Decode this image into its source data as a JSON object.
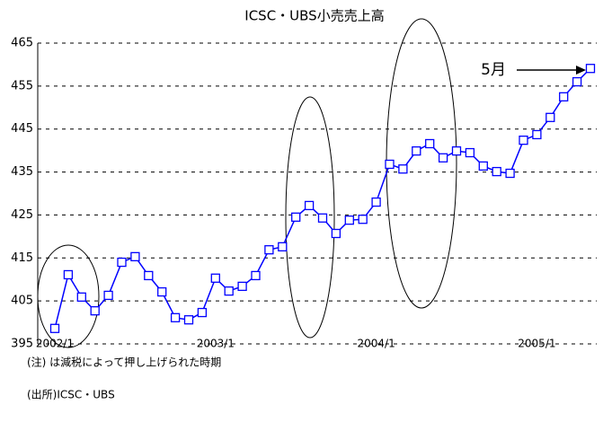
{
  "chart_data": {
    "type": "line",
    "title": "ICSC・UBS小売売上高",
    "categories": [
      "2002/1",
      null,
      null,
      null,
      null,
      null,
      null,
      null,
      null,
      null,
      null,
      null,
      "2003/1",
      null,
      null,
      null,
      null,
      null,
      null,
      null,
      null,
      null,
      null,
      null,
      "2004/1",
      null,
      null,
      null,
      null,
      null,
      null,
      null,
      null,
      null,
      null,
      null,
      "2005/1",
      null,
      null,
      null,
      null
    ],
    "series": [
      {
        "name": "ICSC・UBS小売売上高",
        "color": "#0000ff",
        "values": [
          398.6,
          411.1,
          405.9,
          402.7,
          406.3,
          414.0,
          415.3,
          410.9,
          407.1,
          401.1,
          400.6,
          402.3,
          410.3,
          407.3,
          408.4,
          410.9,
          416.9,
          417.6,
          424.5,
          427.2,
          424.3,
          420.7,
          423.8,
          424.0,
          428.0,
          436.8,
          435.7,
          439.9,
          441.6,
          438.3,
          439.9,
          439.5,
          436.4,
          435.1,
          434.7,
          442.4,
          443.7,
          447.7,
          452.5,
          456.0,
          459.1
        ]
      }
    ],
    "ylim": [
      395,
      465
    ],
    "yticks": [
      395,
      405,
      415,
      425,
      435,
      445,
      455,
      465
    ],
    "grid": true,
    "annotations": [
      "5月"
    ],
    "notes": [
      "(注) は減税によって押し上げられた時期",
      "(出所)ICSC・UBS"
    ]
  }
}
